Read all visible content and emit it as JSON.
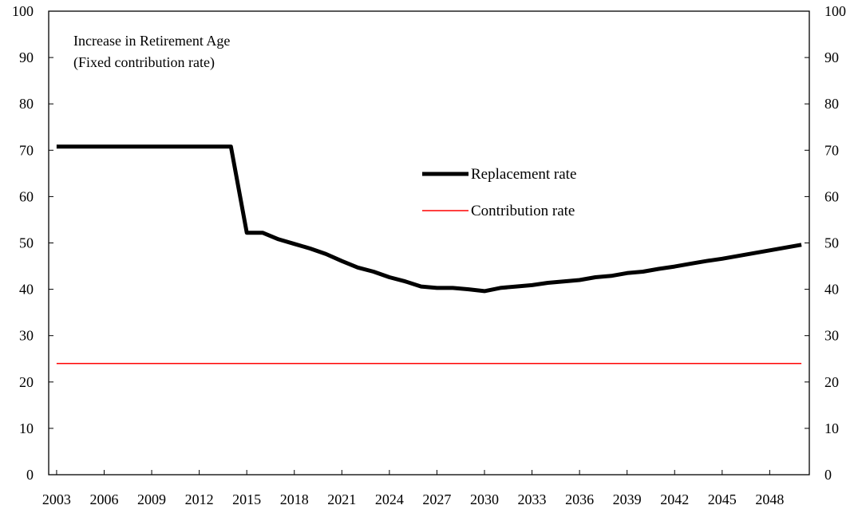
{
  "chart_data": {
    "type": "line",
    "title_lines": [
      "Increase in Retirement Age",
      "(Fixed contribution rate)"
    ],
    "xlabel": "",
    "ylabel": "",
    "x": [
      2003,
      2004,
      2005,
      2006,
      2007,
      2008,
      2009,
      2010,
      2011,
      2012,
      2013,
      2014,
      2015,
      2016,
      2017,
      2018,
      2019,
      2020,
      2021,
      2022,
      2023,
      2024,
      2025,
      2026,
      2027,
      2028,
      2029,
      2030,
      2031,
      2032,
      2033,
      2034,
      2035,
      2036,
      2037,
      2038,
      2039,
      2040,
      2041,
      2042,
      2043,
      2044,
      2045,
      2046,
      2047,
      2048,
      2049,
      2050
    ],
    "x_ticks": [
      "2003",
      "2006",
      "2009",
      "2012",
      "2015",
      "2018",
      "2021",
      "2024",
      "2027",
      "2030",
      "2033",
      "2036",
      "2039",
      "2042",
      "2045",
      "2048"
    ],
    "xlim": [
      2002.5,
      2050.5
    ],
    "ylim": [
      0,
      100
    ],
    "y_ticks_left": [
      "0",
      "10",
      "20",
      "30",
      "40",
      "50",
      "60",
      "70",
      "80",
      "90",
      "100"
    ],
    "y_ticks_right": [
      "0",
      "10",
      "20",
      "30",
      "40",
      "50",
      "60",
      "70",
      "80",
      "90",
      "100"
    ],
    "grid": false,
    "legend_position": "center-right",
    "series": [
      {
        "name": "Replacement rate",
        "color": "#000000",
        "style": "thick",
        "values": [
          70.8,
          70.8,
          70.8,
          70.8,
          70.8,
          70.8,
          70.8,
          70.8,
          70.8,
          70.8,
          70.8,
          70.8,
          52.2,
          52.2,
          50.8,
          49.8,
          48.8,
          47.6,
          46.1,
          44.7,
          43.8,
          42.6,
          41.7,
          40.6,
          40.3,
          40.3,
          40.0,
          39.6,
          40.3,
          40.6,
          40.9,
          41.4,
          41.7,
          42.0,
          42.6,
          42.9,
          43.5,
          43.8,
          44.4,
          44.9,
          45.5,
          46.1,
          46.6,
          47.2,
          47.8,
          48.4,
          49.0,
          49.6
        ]
      },
      {
        "name": "Contribution rate",
        "color": "#ff0000",
        "style": "thin",
        "values": [
          24,
          24,
          24,
          24,
          24,
          24,
          24,
          24,
          24,
          24,
          24,
          24,
          24,
          24,
          24,
          24,
          24,
          24,
          24,
          24,
          24,
          24,
          24,
          24,
          24,
          24,
          24,
          24,
          24,
          24,
          24,
          24,
          24,
          24,
          24,
          24,
          24,
          24,
          24,
          24,
          24,
          24,
          24,
          24,
          24,
          24,
          24,
          24
        ]
      }
    ]
  }
}
